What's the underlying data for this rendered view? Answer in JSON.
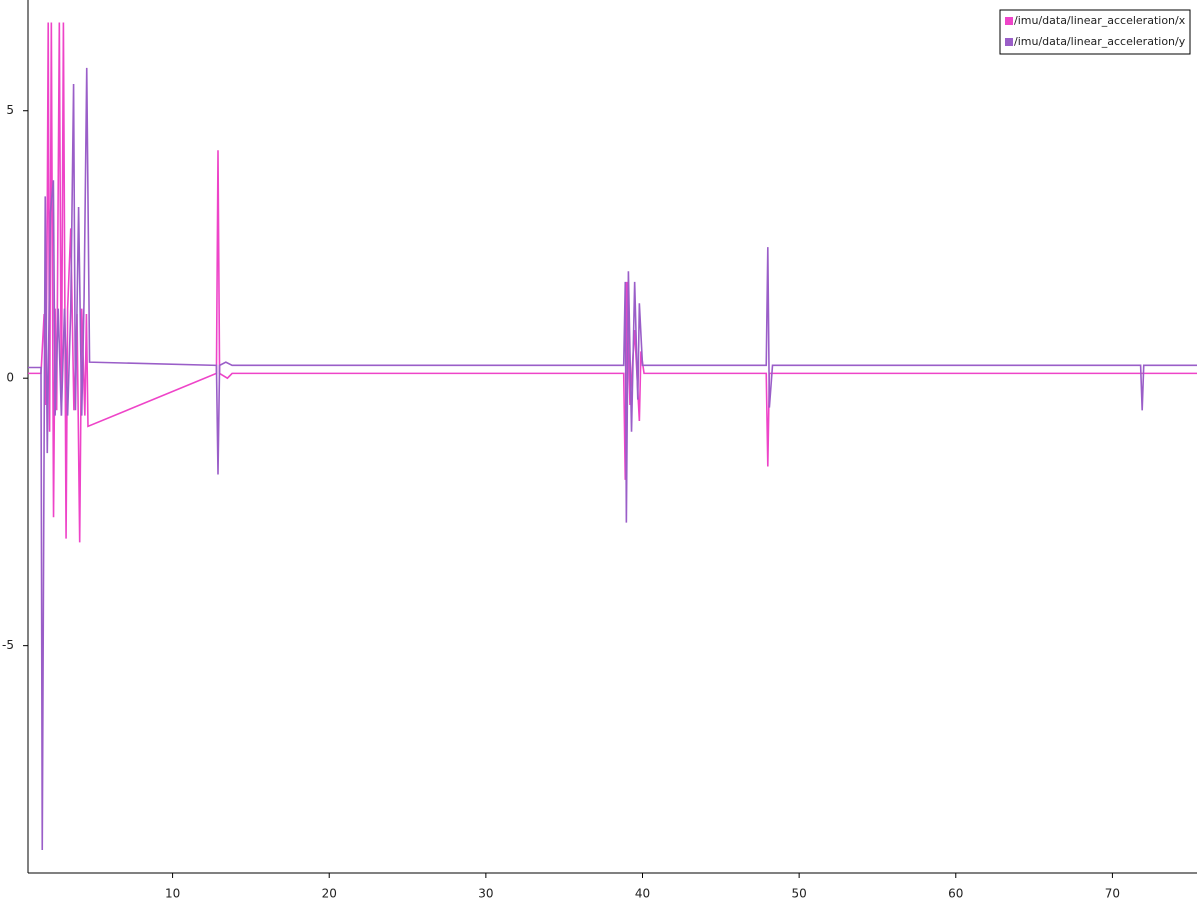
{
  "chart_data": {
    "type": "line",
    "series": [
      {
        "name": "/imu/data/linear_acceleration/x",
        "color": "#ee44c8",
        "x": [
          0.77,
          1.6,
          1.8,
          1.9,
          2.0,
          2.06,
          2.15,
          2.26,
          2.4,
          2.5,
          2.6,
          2.77,
          2.9,
          3.03,
          3.2,
          3.3,
          3.5,
          3.7,
          3.9,
          4.07,
          4.2,
          4.4,
          4.5,
          4.6,
          12.8,
          12.9,
          13.0,
          13.5,
          13.8,
          38.8,
          38.9,
          39.0,
          39.2,
          39.5,
          39.8,
          39.9,
          40.1,
          47.9,
          48.0,
          48.1,
          48.3,
          75.4
        ],
        "values": [
          0.09,
          0.09,
          1.2,
          -0.5,
          3.1,
          6.65,
          -1.0,
          6.65,
          -2.6,
          1.3,
          -0.6,
          6.65,
          -0.7,
          6.65,
          -3.0,
          1.3,
          2.8,
          -0.6,
          1.2,
          -3.07,
          1.3,
          -0.7,
          1.2,
          -0.9,
          0.09,
          4.26,
          0.09,
          0.0,
          0.09,
          0.09,
          -1.9,
          1.8,
          -0.5,
          0.9,
          -0.8,
          0.5,
          0.09,
          0.09,
          -1.65,
          0.09,
          0.09,
          0.09
        ]
      },
      {
        "name": "/imu/data/linear_acceleration/y",
        "color": "#9a5ec8",
        "x": [
          0.77,
          1.6,
          1.68,
          1.87,
          2.0,
          2.2,
          2.39,
          2.5,
          2.7,
          2.9,
          3.1,
          3.3,
          3.5,
          3.68,
          3.8,
          4.0,
          4.2,
          4.35,
          4.52,
          4.7,
          12.8,
          12.9,
          13.0,
          13.4,
          13.8,
          38.8,
          38.9,
          38.97,
          39.1,
          39.3,
          39.5,
          39.7,
          39.8,
          40.0,
          47.9,
          48.0,
          48.1,
          48.3,
          71.8,
          71.9,
          72.0,
          75.4
        ],
        "values": [
          0.2,
          0.2,
          -8.82,
          3.4,
          -1.4,
          3.1,
          3.7,
          -0.7,
          1.3,
          -0.7,
          1.3,
          -0.7,
          1.3,
          5.5,
          -0.6,
          3.2,
          -0.7,
          1.5,
          5.8,
          0.3,
          0.24,
          -1.8,
          0.24,
          0.3,
          0.24,
          0.24,
          1.8,
          -2.7,
          2.0,
          -1.0,
          1.8,
          -0.4,
          1.4,
          0.24,
          0.24,
          2.45,
          -0.55,
          0.24,
          0.24,
          -0.6,
          0.24,
          0.24
        ]
      }
    ],
    "xlim": [
      0.77,
      75.4
    ],
    "xticks": [
      10,
      20,
      30,
      40,
      50,
      60,
      70
    ],
    "ylim": [
      -9.25,
      7.07
    ],
    "yticks": [
      -5,
      0,
      5
    ],
    "legend_position": "upper right"
  }
}
